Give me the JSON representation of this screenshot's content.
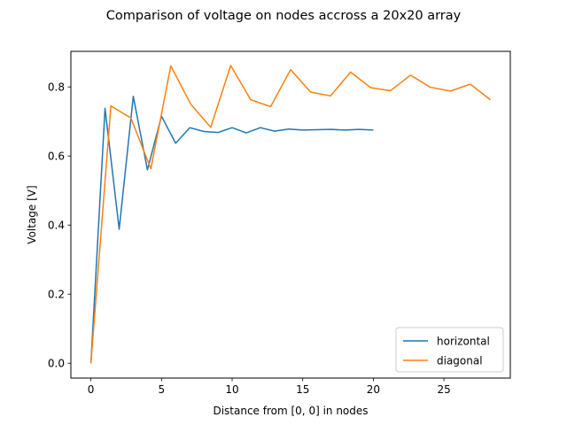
{
  "chart_data": {
    "type": "line",
    "title": "Comparison of voltage on nodes accross a 20x20 array",
    "xlabel": "Distance from [0, 0] in nodes",
    "ylabel": "Voltage [V]",
    "xlim": [
      -1.42,
      29.7
    ],
    "ylim": [
      -0.043,
      0.903
    ],
    "xticks": [
      0,
      5,
      10,
      15,
      20,
      25
    ],
    "yticks": [
      0.0,
      0.2,
      0.4,
      0.6,
      0.8
    ],
    "ytick_labels": [
      "0.0",
      "0.2",
      "0.4",
      "0.6",
      "0.8"
    ],
    "grid": false,
    "legend_position": "lower right",
    "series": [
      {
        "name": "horizontal",
        "color": "#1f77b4",
        "x": [
          0,
          1,
          2,
          3,
          4,
          5,
          6,
          7,
          8,
          9,
          10,
          11,
          12,
          13,
          14,
          15,
          16,
          17,
          18,
          19,
          20
        ],
        "y": [
          0.0,
          0.738,
          0.388,
          0.773,
          0.56,
          0.715,
          0.637,
          0.682,
          0.671,
          0.668,
          0.682,
          0.667,
          0.682,
          0.672,
          0.678,
          0.675,
          0.676,
          0.677,
          0.675,
          0.677,
          0.675
        ]
      },
      {
        "name": "diagonal",
        "color": "#ff7f0e",
        "x": [
          0,
          1.414,
          2.828,
          4.243,
          5.657,
          7.071,
          8.485,
          9.899,
          11.314,
          12.728,
          14.142,
          15.556,
          16.971,
          18.385,
          19.799,
          21.213,
          22.627,
          24.042,
          25.456,
          26.87,
          28.284
        ],
        "y": [
          0.0,
          0.745,
          0.71,
          0.563,
          0.861,
          0.75,
          0.683,
          0.862,
          0.763,
          0.743,
          0.85,
          0.785,
          0.774,
          0.843,
          0.798,
          0.789,
          0.834,
          0.799,
          0.788,
          0.808,
          0.763
        ]
      }
    ]
  }
}
